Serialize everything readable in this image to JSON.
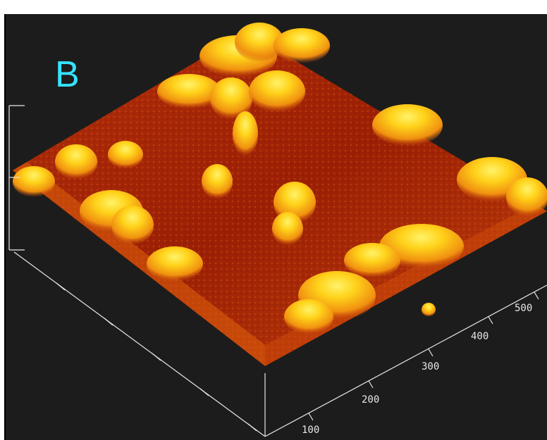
{
  "figure": {
    "title_fragment": "",
    "panel_label": "B",
    "colors": {
      "background": "#1c1c1c",
      "surface_low": "#a01e06",
      "surface_mid": "#e06a0c",
      "surface_high": "#ffd21a",
      "axis": "#e8e8e8",
      "panel_label": "#35e3ff"
    },
    "right_axis_ticks": [
      "100",
      "200",
      "300",
      "400",
      "500"
    ]
  }
}
